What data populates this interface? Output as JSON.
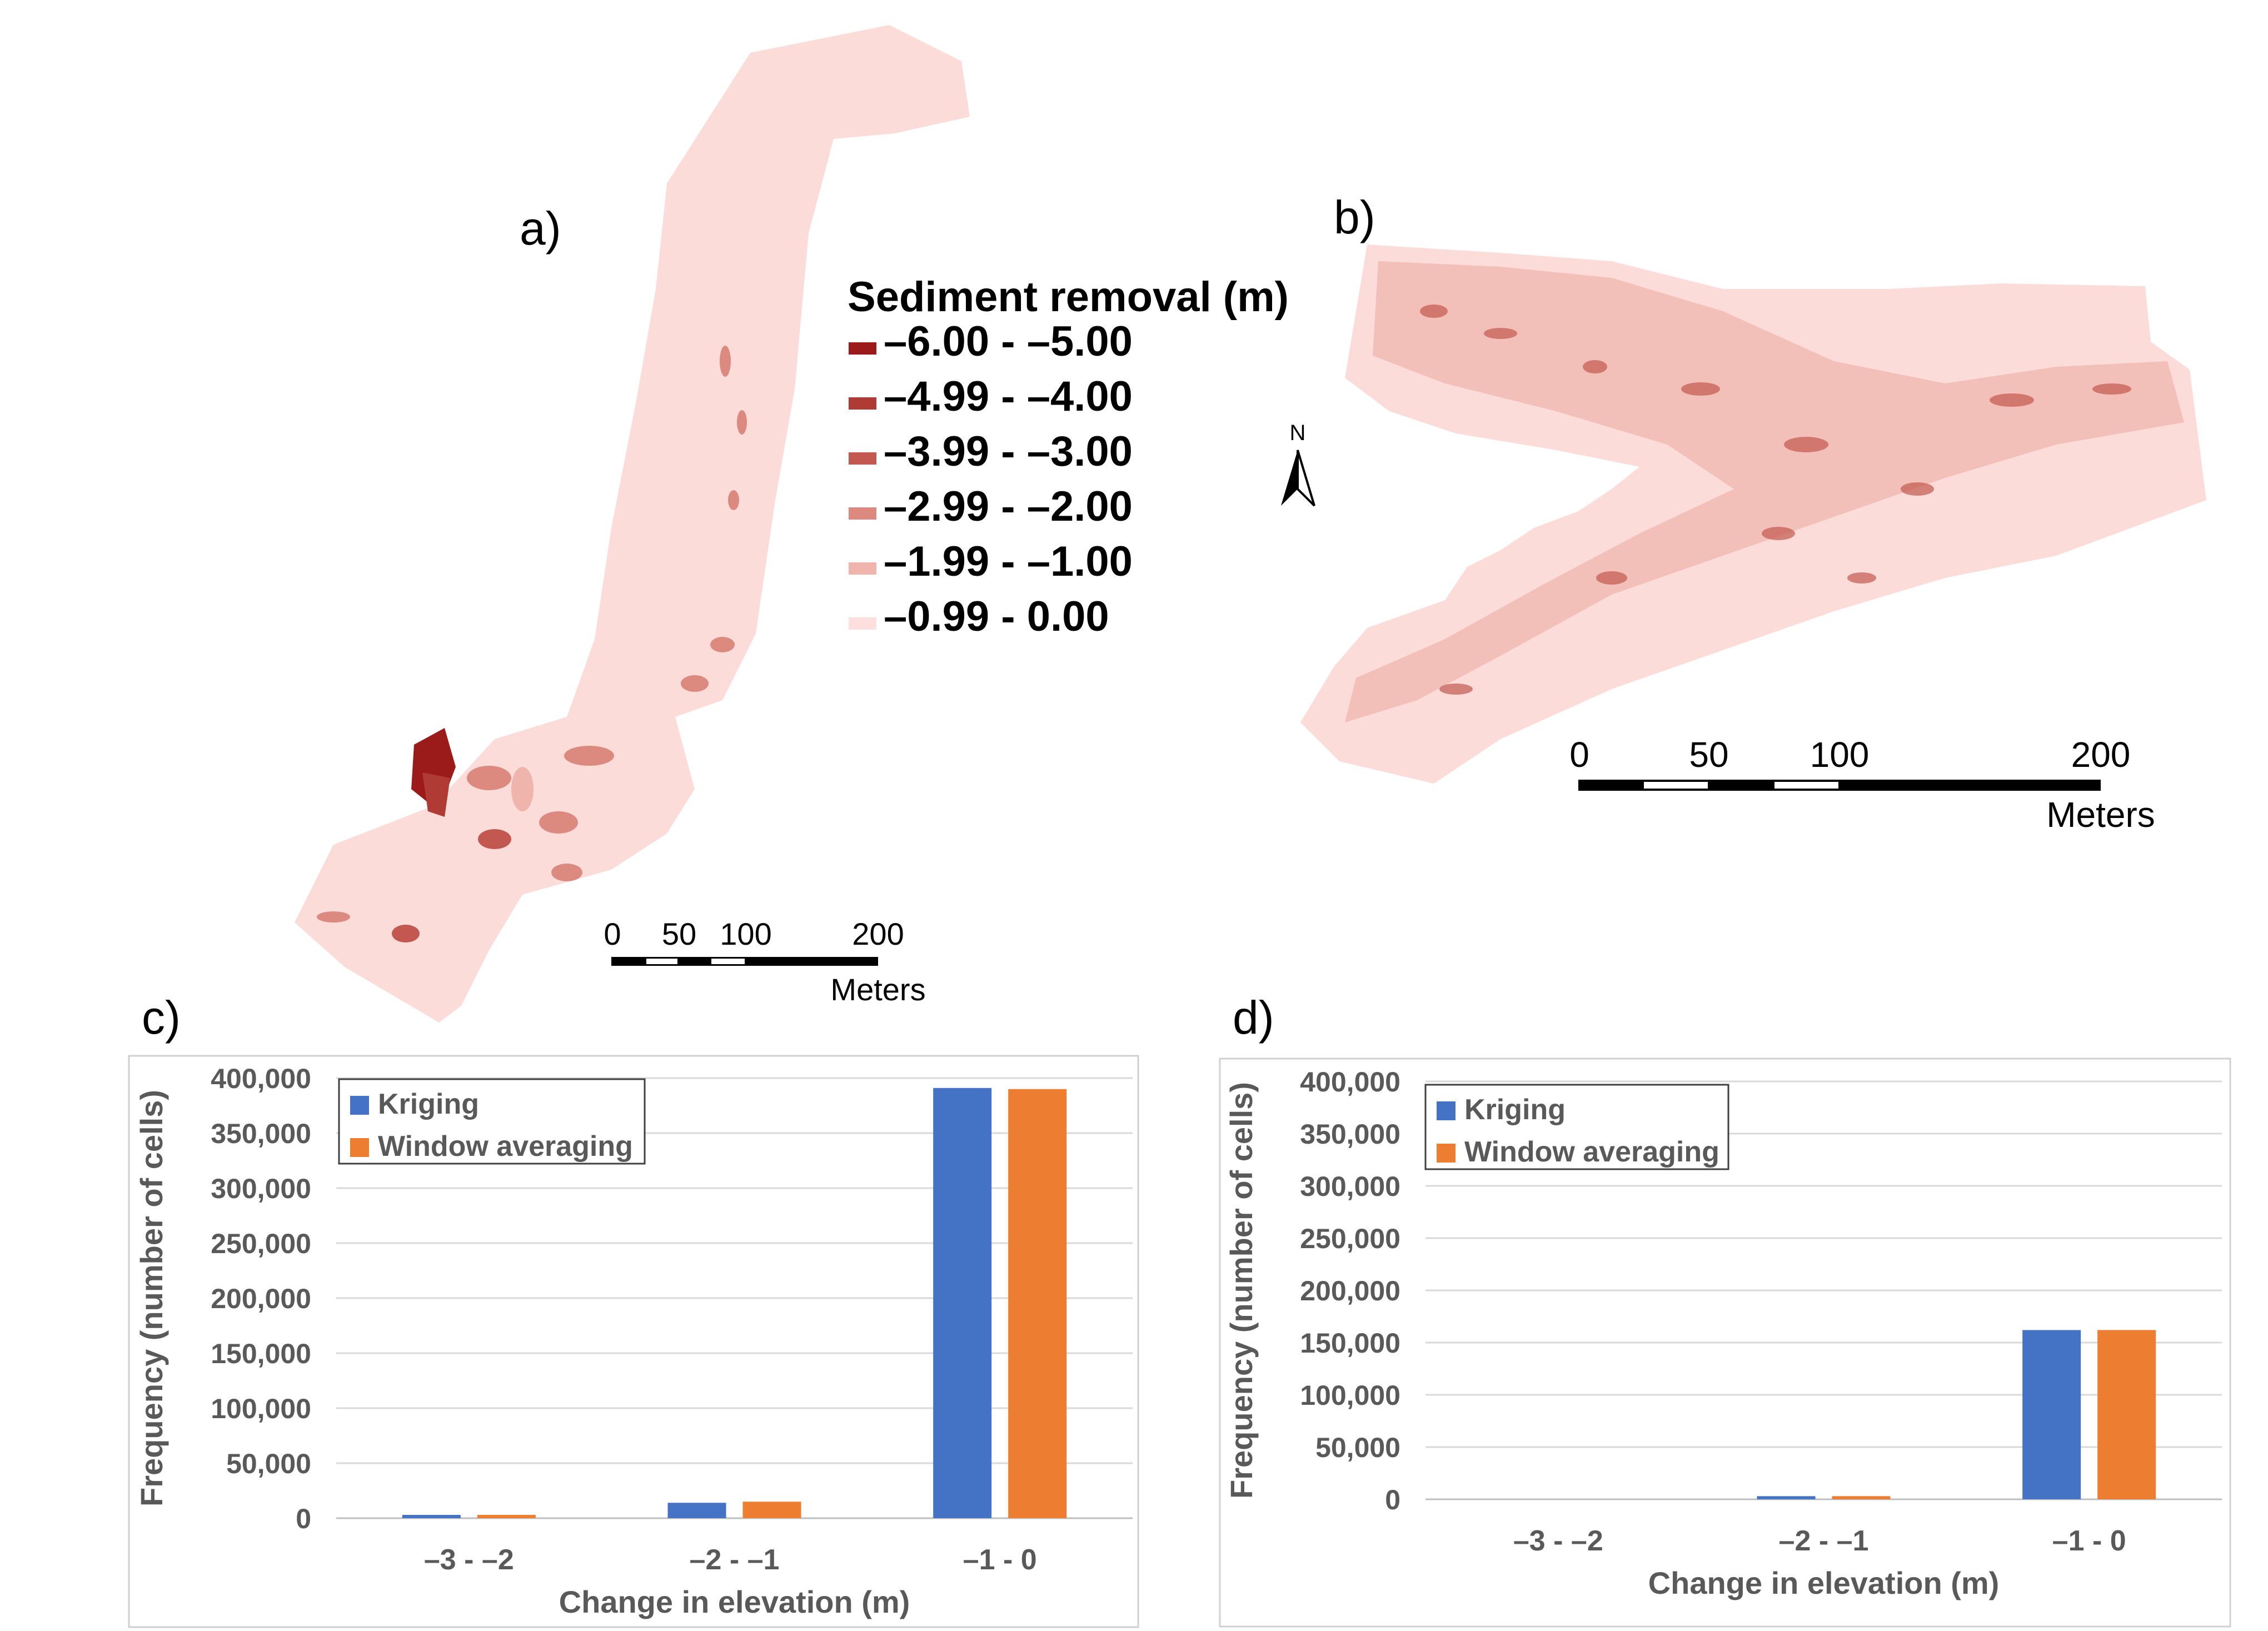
{
  "panels": {
    "a": {
      "label": "a)"
    },
    "b": {
      "label": "b)"
    },
    "c": {
      "label": "c)"
    },
    "d": {
      "label": "d)"
    }
  },
  "legend_map": {
    "title": "Sediment removal (m)",
    "items": [
      {
        "label": "–6.00 - –5.00",
        "color": "#9b1b1b"
      },
      {
        "label": "–4.99 - –4.00",
        "color": "#b03a34"
      },
      {
        "label": "–3.99 - –3.00",
        "color": "#c2584f"
      },
      {
        "label": "–2.99 - –2.00",
        "color": "#dc8a80"
      },
      {
        "label": "–1.99 - –1.00",
        "color": "#efb4ac"
      },
      {
        "label": "–0.99 -  0.00",
        "color": "#fde0dd"
      }
    ]
  },
  "north_arrow": {
    "label": "N"
  },
  "scalebar_a": {
    "ticks": [
      "0",
      "50",
      "100",
      "200"
    ],
    "unit": "Meters"
  },
  "scalebar_b": {
    "ticks": [
      "0",
      "50",
      "100",
      "200"
    ],
    "unit": "Meters"
  },
  "colors": {
    "kriging": "#4472c4",
    "window": "#ed7d31",
    "map_base": "#fcdcd9",
    "map_dark": "#b8342e"
  },
  "chart_data": [
    {
      "type": "bar",
      "panel": "c",
      "categories": [
        "–3 - –2",
        "–2 - –1",
        "–1 - 0"
      ],
      "series": [
        {
          "name": "Kriging",
          "values": [
            3000,
            14000,
            391000
          ]
        },
        {
          "name": "Window averaging",
          "values": [
            3000,
            15000,
            390000
          ]
        }
      ],
      "xlabel": "Change in elevation (m)",
      "ylabel": "Frequency (number of cells)",
      "ylim": [
        0,
        400000
      ],
      "yticks": [
        "0",
        "50,000",
        "100,000",
        "150,000",
        "200,000",
        "250,000",
        "300,000",
        "350,000",
        "400,000"
      ],
      "grid": true,
      "legend": "top-left"
    },
    {
      "type": "bar",
      "panel": "d",
      "categories": [
        "–3 - –2",
        "–2 - –1",
        "–1 - 0"
      ],
      "series": [
        {
          "name": "Kriging",
          "values": [
            0,
            3000,
            162000
          ]
        },
        {
          "name": "Window averaging",
          "values": [
            0,
            3000,
            162000
          ]
        }
      ],
      "xlabel": "Change in elevation (m)",
      "ylabel": "Frequency (number of cells)",
      "ylim": [
        0,
        400000
      ],
      "yticks": [
        "0",
        "50,000",
        "100,000",
        "150,000",
        "200,000",
        "250,000",
        "300,000",
        "350,000",
        "400,000"
      ],
      "grid": true,
      "legend": "top-left"
    }
  ]
}
